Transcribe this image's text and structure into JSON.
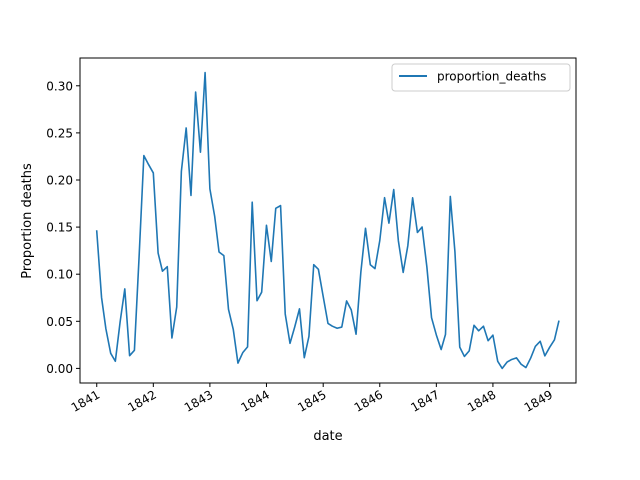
{
  "chart_data": {
    "type": "line",
    "xlabel": "date",
    "ylabel": "Proportion deaths",
    "xlim": [
      "1840-09-15",
      "1849-06-20"
    ],
    "ylim": [
      -0.0155,
      0.3295
    ],
    "x_ticks": [
      "1841",
      "1842",
      "1843",
      "1844",
      "1845",
      "1846",
      "1847",
      "1848",
      "1849"
    ],
    "y_ticks": [
      "0.00",
      "0.05",
      "0.10",
      "0.15",
      "0.20",
      "0.25",
      "0.30"
    ],
    "legend": {
      "position": "upper right",
      "entries": [
        "proportion_deaths"
      ]
    },
    "series": [
      {
        "name": "proportion_deaths",
        "color": "#1f77b4",
        "x": [
          "1841-01-01",
          "1841-02-01",
          "1841-03-01",
          "1841-04-01",
          "1841-05-01",
          "1841-06-01",
          "1841-07-01",
          "1841-08-01",
          "1841-09-01",
          "1841-10-01",
          "1841-11-01",
          "1841-12-01",
          "1842-01-01",
          "1842-02-01",
          "1842-03-01",
          "1842-04-01",
          "1842-05-01",
          "1842-06-01",
          "1842-07-01",
          "1842-08-01",
          "1842-09-01",
          "1842-10-01",
          "1842-11-01",
          "1842-12-01",
          "1843-01-01",
          "1843-02-01",
          "1843-03-01",
          "1843-04-01",
          "1843-05-01",
          "1843-06-01",
          "1843-07-01",
          "1843-08-01",
          "1843-09-01",
          "1843-10-01",
          "1843-11-01",
          "1843-12-01",
          "1844-01-01",
          "1844-02-01",
          "1844-03-01",
          "1844-04-01",
          "1844-05-01",
          "1844-06-01",
          "1844-07-01",
          "1844-08-01",
          "1844-09-01",
          "1844-10-01",
          "1844-11-01",
          "1844-12-01",
          "1845-01-01",
          "1845-02-01",
          "1845-03-01",
          "1845-04-01",
          "1845-05-01",
          "1845-06-01",
          "1845-07-01",
          "1845-08-01",
          "1845-09-01",
          "1845-10-01",
          "1845-11-01",
          "1845-12-01",
          "1846-01-01",
          "1846-02-01",
          "1846-03-01",
          "1846-04-01",
          "1846-05-01",
          "1846-06-01",
          "1846-07-01",
          "1846-08-01",
          "1846-09-01",
          "1846-10-01",
          "1846-11-01",
          "1846-12-01",
          "1847-01-01",
          "1847-02-01",
          "1847-03-01",
          "1847-04-01",
          "1847-05-01",
          "1847-06-01",
          "1847-07-01",
          "1847-08-01",
          "1847-09-01",
          "1847-10-01",
          "1847-11-01",
          "1847-12-01",
          "1848-01-01",
          "1848-02-01",
          "1848-03-01",
          "1848-04-01",
          "1848-05-01",
          "1848-06-01",
          "1848-07-01",
          "1848-08-01",
          "1848-09-01",
          "1848-10-01",
          "1848-11-01",
          "1848-12-01",
          "1849-01-01",
          "1849-02-01",
          "1849-03-01"
        ],
        "y": [
          0.1458,
          0.0753,
          0.0421,
          0.016,
          0.0076,
          0.0496,
          0.0844,
          0.0135,
          0.0192,
          0.1178,
          0.2259,
          0.2165,
          0.2075,
          0.1224,
          0.1032,
          0.108,
          0.0323,
          0.0652,
          0.2092,
          0.2552,
          0.1836,
          0.2934,
          0.2295,
          0.314,
          0.1906,
          0.1614,
          0.1236,
          0.1197,
          0.0627,
          0.0412,
          0.0056,
          0.0167,
          0.0228,
          0.1764,
          0.0718,
          0.0809,
          0.1519,
          0.1135,
          0.1699,
          0.1728,
          0.0578,
          0.0266,
          0.0438,
          0.0632,
          0.0114,
          0.034,
          0.1101,
          0.1052,
          0.0763,
          0.0477,
          0.0448,
          0.0426,
          0.0439,
          0.0716,
          0.0621,
          0.0363,
          0.1023,
          0.1487,
          0.11,
          0.1059,
          0.1356,
          0.1812,
          0.1542,
          0.1898,
          0.1354,
          0.1019,
          0.1302,
          0.1811,
          0.1443,
          0.1501,
          0.1075,
          0.0538,
          0.0355,
          0.02,
          0.0361,
          0.1826,
          0.1236,
          0.0226,
          0.0127,
          0.0186,
          0.0458,
          0.0399,
          0.0448,
          0.0294,
          0.0353,
          0.0075,
          0.0,
          0.0067,
          0.0095,
          0.0112,
          0.0044,
          0.0009,
          0.0111,
          0.0235,
          0.0288,
          0.0133,
          0.0224,
          0.0304,
          0.0499
        ]
      }
    ]
  }
}
